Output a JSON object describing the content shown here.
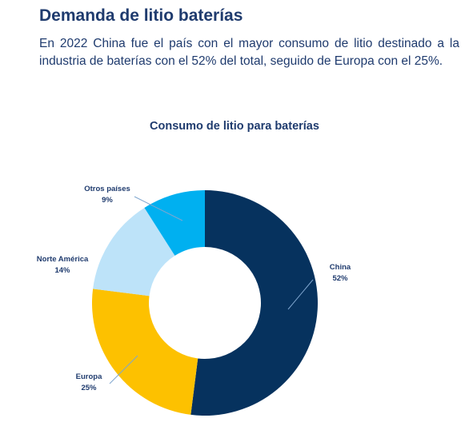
{
  "heading": "Demanda de litio baterías",
  "intro": "En 2022 China fue el país con el mayor consumo de litio destinado a la industria de baterías con el 52% del total, seguido de Europa con el 25%.",
  "chart_data": {
    "type": "pie",
    "donut": true,
    "title": "Consumo de litio para baterías",
    "categories": [
      "China",
      "Europa",
      "Norte América",
      "Otros países"
    ],
    "values": [
      52,
      25,
      14,
      9
    ],
    "labels": [
      "52%",
      "25%",
      "14%",
      "9%"
    ],
    "colors": [
      "#06325e",
      "#fdc100",
      "#bde3f9",
      "#00b0f0"
    ],
    "legend": "none"
  }
}
